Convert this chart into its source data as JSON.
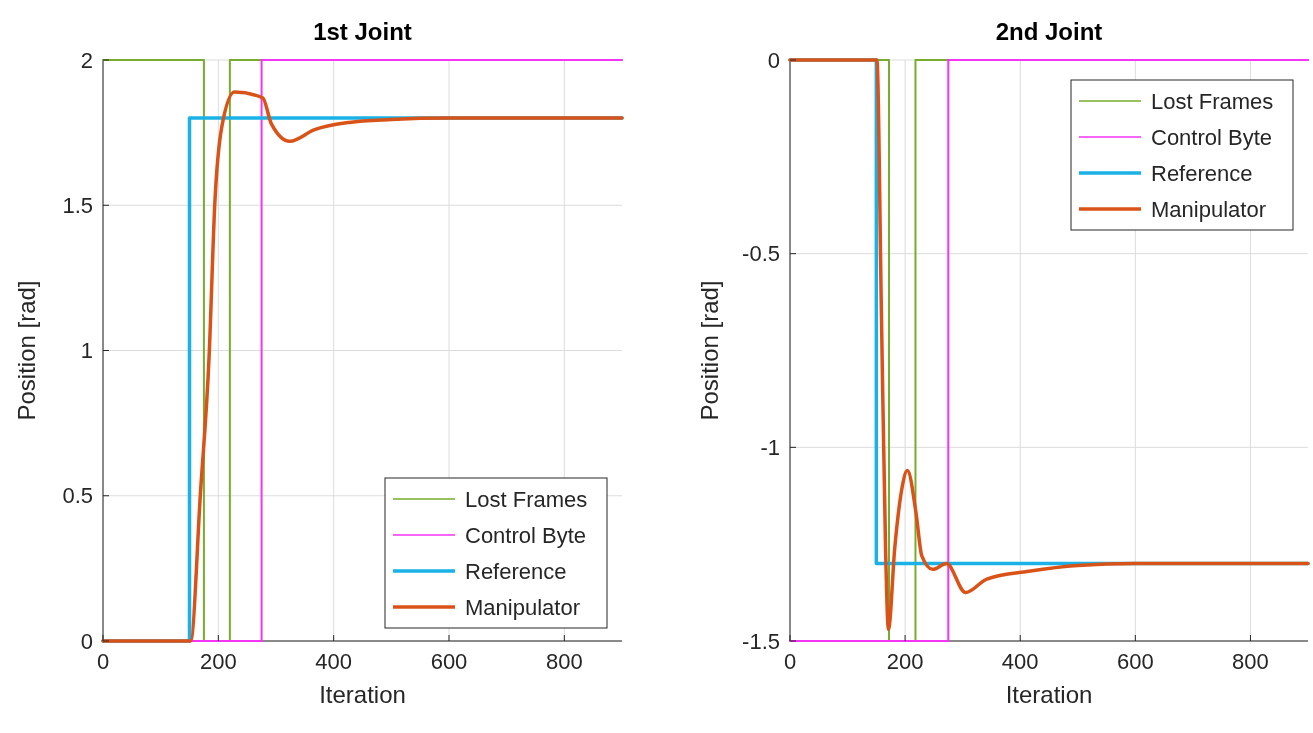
{
  "chart_data": [
    {
      "type": "line",
      "title": "1st Joint",
      "xlabel": "Iteration",
      "ylabel": "Position [rad]",
      "xlim": [
        0,
        900
      ],
      "xticks": [
        0,
        200,
        400,
        600,
        800
      ],
      "ylim": [
        0,
        2
      ],
      "yticks": [
        0,
        0.5,
        1,
        1.5,
        2
      ],
      "grid": true,
      "legend": "bottom right",
      "series": [
        {
          "name": "Lost Frames",
          "type": "step",
          "color": "#77ac30",
          "x": [
            0,
            175,
            220,
            900
          ],
          "values": [
            2,
            0,
            2,
            2
          ]
        },
        {
          "name": "Control Byte",
          "type": "step",
          "color": "#f535f5",
          "x": [
            0,
            275,
            900
          ],
          "values": [
            0,
            2,
            2
          ]
        },
        {
          "name": "Reference",
          "type": "step",
          "color": "#1ab2e6",
          "x": [
            0,
            150,
            900
          ],
          "values": [
            0,
            1.8,
            1.8
          ]
        },
        {
          "name": "Manipulator",
          "color": "#d95319",
          "x": [
            0,
            152,
            169,
            184,
            194,
            206,
            228,
            277,
            292,
            324,
            367,
            427,
            500,
            600,
            900
          ],
          "values": [
            0,
            0,
            0.51,
            0.98,
            1.51,
            1.77,
            1.89,
            1.87,
            1.78,
            1.72,
            1.76,
            1.785,
            1.795,
            1.8,
            1.8
          ]
        }
      ]
    },
    {
      "type": "line",
      "title": "2nd Joint",
      "xlabel": "Iteration",
      "ylabel": "Position [rad]",
      "xlim": [
        0,
        900
      ],
      "xticks": [
        0,
        200,
        400,
        600,
        800
      ],
      "ylim": [
        -1.5,
        0
      ],
      "yticks": [
        -1.5,
        -1,
        -0.5,
        0
      ],
      "grid": true,
      "legend": "top right",
      "series": [
        {
          "name": "Lost Frames",
          "type": "step",
          "color": "#77ac30",
          "x": [
            0,
            172,
            218,
            900
          ],
          "values": [
            0,
            -1.5,
            0,
            0
          ]
        },
        {
          "name": "Control Byte",
          "type": "step",
          "color": "#f535f5",
          "x": [
            0,
            275,
            900
          ],
          "values": [
            -1.5,
            0,
            0
          ]
        },
        {
          "name": "Reference",
          "type": "step",
          "color": "#1ab2e6",
          "x": [
            0,
            150,
            900
          ],
          "values": [
            0,
            -1.3,
            -1.3
          ]
        },
        {
          "name": "Manipulator",
          "color": "#d95319",
          "x": [
            0,
            151,
            159,
            166,
            171,
            182,
            194,
            204,
            219,
            229,
            248,
            272,
            305,
            342,
            415,
            500,
            600,
            900
          ],
          "values": [
            0,
            0,
            -0.67,
            -1.26,
            -1.47,
            -1.26,
            -1.11,
            -1.06,
            -1.17,
            -1.28,
            -1.315,
            -1.3,
            -1.375,
            -1.34,
            -1.32,
            -1.305,
            -1.3,
            -1.3
          ]
        }
      ]
    }
  ]
}
